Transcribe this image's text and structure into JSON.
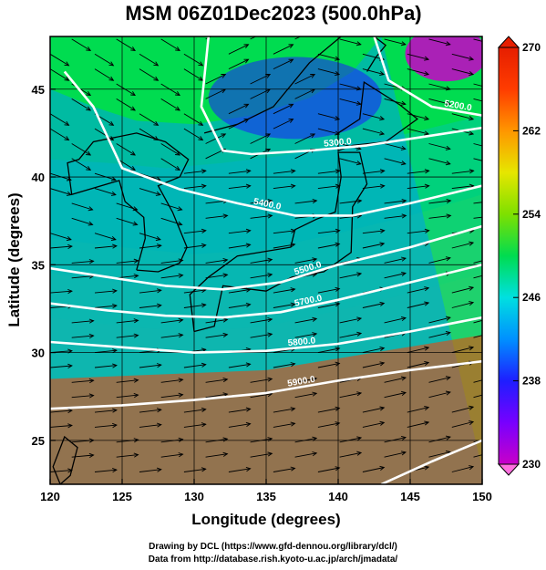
{
  "chart_data": {
    "type": "heatmap",
    "title": "MSM 06Z01Dec2023 (500.0hPa)",
    "xlabel": "Longitude (degrees)",
    "ylabel": "Latitude  (degrees)",
    "xlim": [
      120,
      150
    ],
    "ylim": [
      22.5,
      48
    ],
    "xticks": [
      "120",
      "125",
      "130",
      "135",
      "140",
      "145",
      "150"
    ],
    "yticks": [
      "25",
      "30",
      "35",
      "40",
      "45"
    ],
    "grid": true,
    "colorbar": {
      "range": [
        230,
        270
      ],
      "ticks": [
        "230",
        "238",
        "246",
        "254",
        "262",
        "270"
      ],
      "colors": [
        "#c800c8",
        "#7800ff",
        "#1e1eff",
        "#0090ff",
        "#00e0e0",
        "#00dc50",
        "#7ee000",
        "#e6e600",
        "#ff9600",
        "#ff3c00",
        "#e61e00"
      ]
    },
    "contours": [
      {
        "label": "5200.0",
        "points": [
          [
            142.5,
            48
          ],
          [
            143.5,
            45.5
          ],
          [
            146.5,
            44
          ],
          [
            150,
            43.5
          ]
        ]
      },
      {
        "label": "5300.0",
        "points": [
          [
            131,
            48
          ],
          [
            130.5,
            44
          ],
          [
            132,
            41.5
          ],
          [
            134,
            41.3
          ],
          [
            138,
            41.5
          ],
          [
            142,
            41.8
          ],
          [
            146,
            42.3
          ],
          [
            150,
            42.8
          ]
        ]
      },
      {
        "label": "5400.0",
        "points": [
          [
            121,
            46
          ],
          [
            123,
            44
          ],
          [
            125,
            40.5
          ],
          [
            129,
            39.3
          ],
          [
            133,
            38.5
          ],
          [
            137,
            37.8
          ],
          [
            141,
            37.8
          ],
          [
            145,
            38.5
          ],
          [
            150,
            39.5
          ]
        ]
      },
      {
        "label": "5500.0",
        "points": [
          [
            120,
            34.8
          ],
          [
            124,
            34.3
          ],
          [
            128,
            33.8
          ],
          [
            132,
            33.6
          ],
          [
            136,
            34
          ],
          [
            140,
            35
          ],
          [
            145,
            36
          ],
          [
            150,
            37.2
          ]
        ]
      },
      {
        "label": "5700.0",
        "points": [
          [
            120,
            32.8
          ],
          [
            124,
            32.4
          ],
          [
            128,
            32.1
          ],
          [
            132,
            32
          ],
          [
            136,
            32.3
          ],
          [
            140,
            33
          ],
          [
            145,
            34
          ],
          [
            150,
            35
          ]
        ]
      },
      {
        "label": "5800.0",
        "points": [
          [
            120,
            30.6
          ],
          [
            125,
            30.3
          ],
          [
            130,
            30
          ],
          [
            135,
            30.1
          ],
          [
            140,
            30.5
          ],
          [
            145,
            31.2
          ],
          [
            150,
            32
          ]
        ]
      },
      {
        "label": "5900.0",
        "points": [
          [
            120,
            26.8
          ],
          [
            125,
            27
          ],
          [
            130,
            27.3
          ],
          [
            135,
            27.7
          ],
          [
            140,
            28.4
          ],
          [
            145,
            29
          ],
          [
            150,
            29.5
          ]
        ]
      },
      {
        "label": "",
        "points": [
          [
            143,
            22.5
          ],
          [
            146.5,
            23.8
          ],
          [
            150,
            25
          ]
        ]
      }
    ],
    "wind": "predominantly westerly flow, strongest between 32 and 42 degrees latitude"
  },
  "credits": {
    "line1": "Drawing by DCL (https://www.gfd‐dennou.org/library/dcl/)",
    "line2": "Data from http://database.rish.kyoto‐u.ac.jp/arch/jmadata/"
  }
}
